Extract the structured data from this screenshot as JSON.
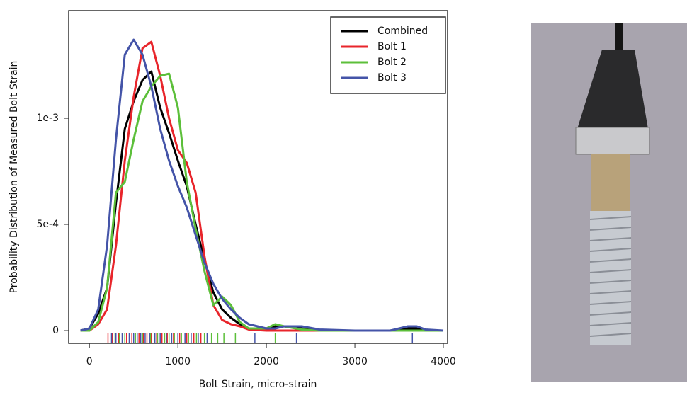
{
  "chart_data": {
    "type": "line",
    "xlabel": "Bolt Strain, micro-strain",
    "ylabel": "Probability Distribution of Measured Bolt Strain",
    "xlim": [
      -234,
      4048
    ],
    "ylim": [
      -6e-05,
      0.001507
    ],
    "xticks": [
      0,
      1000,
      2000,
      3000,
      4000
    ],
    "yticks": [
      0,
      {
        "value": 0.0005,
        "label": "5e-4"
      },
      {
        "value": 0.001,
        "label": "1e-3"
      }
    ],
    "legend": "upper right",
    "x": [
      -100,
      0,
      100,
      200,
      300,
      400,
      500,
      600,
      700,
      800,
      900,
      1000,
      1100,
      1200,
      1300,
      1400,
      1500,
      1600,
      1700,
      1800,
      2000,
      2100,
      2200,
      2400,
      2600,
      3000,
      3400,
      3600,
      3700,
      3800,
      4000
    ],
    "series": [
      {
        "name": "Combined",
        "color": "#000000",
        "values": [
          0,
          1e-05,
          8e-05,
          0.0002,
          0.0006,
          0.00095,
          0.00108,
          0.00118,
          0.00122,
          0.00105,
          0.00093,
          0.0008,
          0.00068,
          0.0005,
          0.00033,
          0.00018,
          0.0001,
          6e-05,
          3e-05,
          1e-05,
          1e-05,
          2e-05,
          2e-05,
          1e-05,
          0,
          0,
          0,
          1e-05,
          1e-05,
          0,
          0
        ]
      },
      {
        "name": "Bolt 1",
        "color": "#e8252b",
        "values": [
          0,
          0,
          3e-05,
          0.0001,
          0.0004,
          0.0008,
          0.0011,
          0.00133,
          0.00136,
          0.0012,
          0.001,
          0.00085,
          0.00079,
          0.00065,
          0.00035,
          0.00012,
          5e-05,
          3e-05,
          2e-05,
          5e-06,
          0,
          0,
          0,
          0,
          0,
          0,
          0,
          0,
          0,
          0,
          0
        ],
        "rug": [
          210,
          260,
          330,
          420,
          480,
          560,
          610,
          650,
          700,
          760,
          820,
          880,
          950,
          1020,
          1100,
          1180,
          1260
        ]
      },
      {
        "name": "Bolt 2",
        "color": "#5cbf3a",
        "values": [
          0,
          0,
          4e-05,
          0.0002,
          0.00065,
          0.0007,
          0.0009,
          0.00108,
          0.00115,
          0.0012,
          0.00121,
          0.00105,
          0.0007,
          0.00048,
          0.00028,
          0.00012,
          0.00016,
          0.00012,
          4e-05,
          1e-05,
          1e-05,
          3e-05,
          2e-05,
          5e-06,
          0,
          0,
          0,
          0,
          0,
          0,
          0
        ],
        "rug": [
          290,
          340,
          400,
          520,
          600,
          690,
          770,
          850,
          900,
          960,
          1040,
          1120,
          1210,
          1300,
          1380,
          1450,
          1520,
          1650,
          2100
        ]
      },
      {
        "name": "Bolt 3",
        "color": "#4454a8",
        "values": [
          0,
          1e-05,
          0.0001,
          0.0004,
          0.0009,
          0.0013,
          0.00137,
          0.0013,
          0.00115,
          0.00095,
          0.0008,
          0.00068,
          0.00058,
          0.00045,
          0.00032,
          0.00022,
          0.00015,
          0.0001,
          6e-05,
          3e-05,
          1e-05,
          1e-05,
          2e-05,
          2e-05,
          5e-06,
          0,
          0,
          2e-05,
          2e-05,
          5e-06,
          0
        ],
        "rug": [
          250,
          300,
          370,
          450,
          500,
          540,
          580,
          630,
          680,
          740,
          800,
          870,
          930,
          1000,
          1080,
          1150,
          1230,
          1330,
          1870,
          2340,
          3650
        ]
      }
    ]
  }
}
